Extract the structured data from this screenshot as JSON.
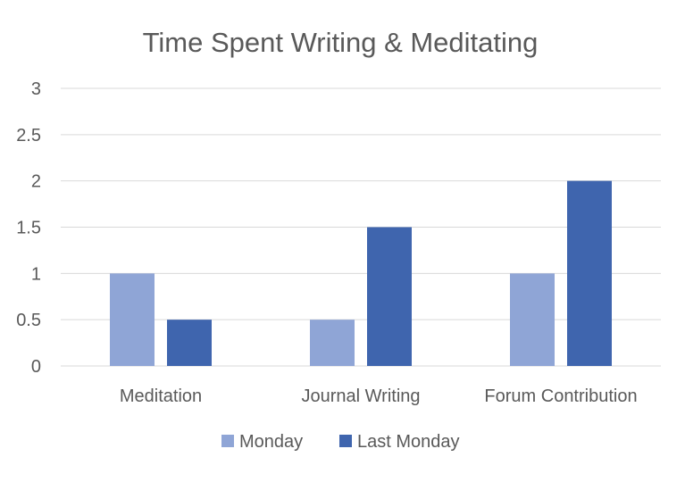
{
  "chart_data": {
    "type": "bar",
    "title": "Time Spent Writing & Meditating",
    "categories": [
      "Meditation",
      "Journal Writing",
      "Forum Contribution"
    ],
    "series": [
      {
        "name": "Monday",
        "values": [
          1,
          0.5,
          1
        ],
        "color": "#8fa5d6"
      },
      {
        "name": "Last Monday",
        "values": [
          0.5,
          1.5,
          2
        ],
        "color": "#3f65ae"
      }
    ],
    "ylim": [
      0,
      3
    ],
    "yticks": [
      "0",
      "0.5",
      "1",
      "1.5",
      "2",
      "2.5",
      "3"
    ],
    "grid": true,
    "legend_position": "bottom"
  }
}
